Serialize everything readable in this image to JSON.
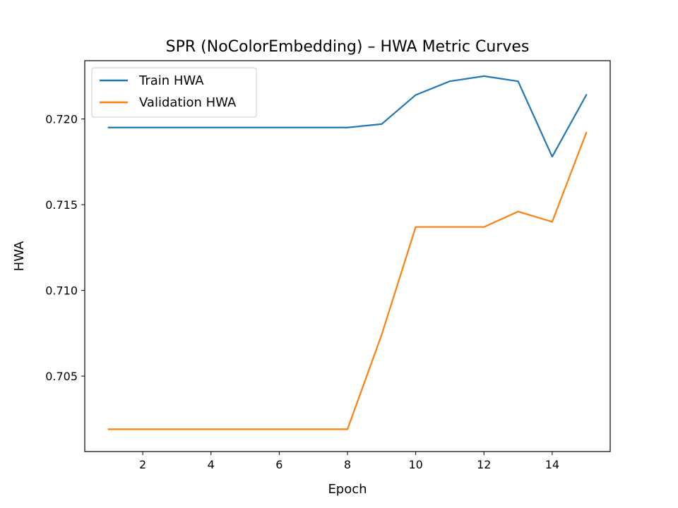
{
  "chart_data": {
    "type": "line",
    "title": "SPR (NoColorEmbedding) – HWA Metric Curves",
    "xlabel": "Epoch",
    "ylabel": "HWA",
    "x": [
      1,
      2,
      3,
      4,
      5,
      6,
      7,
      8,
      9,
      10,
      11,
      12,
      13,
      14,
      15
    ],
    "xlim": [
      0.3,
      15.7
    ],
    "ylim": [
      0.7006,
      0.7234
    ],
    "xticks": [
      2,
      4,
      6,
      8,
      10,
      12,
      14
    ],
    "yticks": [
      0.705,
      0.71,
      0.715,
      0.72
    ],
    "xtick_labels": [
      "2",
      "4",
      "6",
      "8",
      "10",
      "12",
      "14"
    ],
    "ytick_labels": [
      "0.705",
      "0.710",
      "0.715",
      "0.720"
    ],
    "grid": false,
    "legend_position": "top-left",
    "series": [
      {
        "name": "Train HWA",
        "color": "#1f77b4",
        "values": [
          0.7195,
          0.7195,
          0.7195,
          0.7195,
          0.7195,
          0.7195,
          0.7195,
          0.7195,
          0.7197,
          0.7214,
          0.7222,
          0.7225,
          0.7222,
          0.7178,
          0.7214
        ]
      },
      {
        "name": "Validation HWA",
        "color": "#ff7f0e",
        "values": [
          0.7019,
          0.7019,
          0.7019,
          0.7019,
          0.7019,
          0.7019,
          0.7019,
          0.7019,
          0.7074,
          0.7137,
          0.7137,
          0.7137,
          0.7146,
          0.714,
          0.7192
        ]
      }
    ]
  }
}
